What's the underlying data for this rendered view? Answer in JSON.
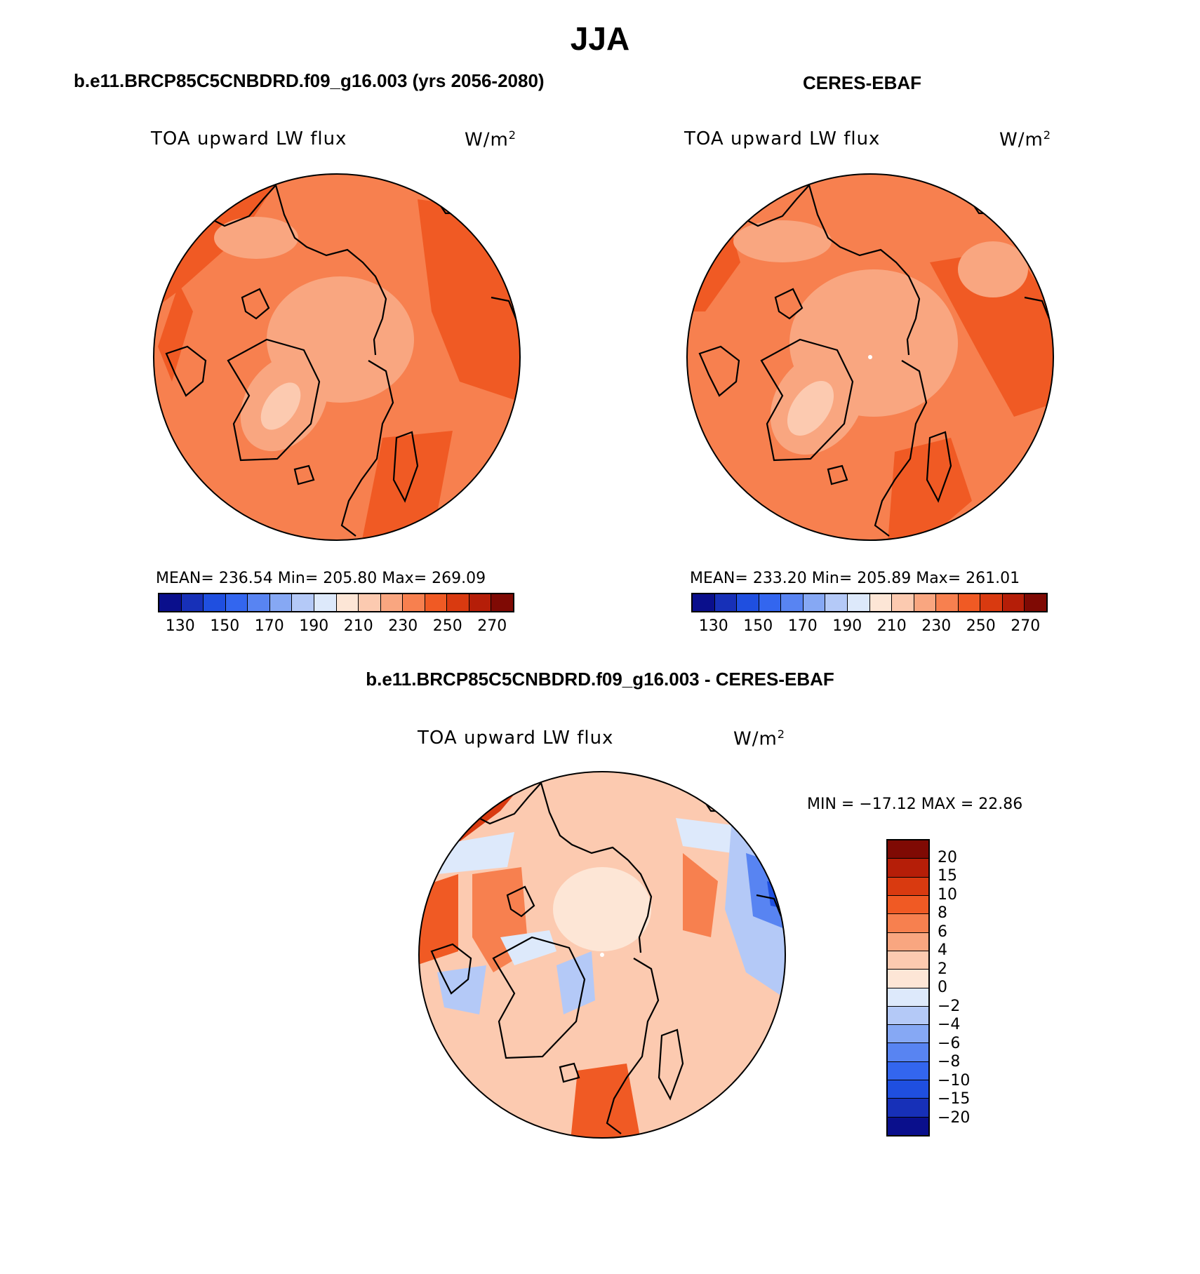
{
  "figure": {
    "title": "JJA"
  },
  "panels": [
    {
      "title": "b.e11.BRCP85C5CNBDRD.f09_g16.003 (yrs 2056-2080)",
      "variable": "TOA upward LW flux",
      "units": "W/m",
      "units_sup": "2",
      "stats": "MEAN= 236.54   Min= 205.80   Max= 269.09",
      "projection": "polar stereographic, north pole",
      "colors": [
        "#0a0f8c",
        "#1730b8",
        "#1f4fe0",
        "#3366ef",
        "#5884f2",
        "#86a8f4",
        "#b4c9f7",
        "#dde9fb",
        "#fde6d6",
        "#fccab0",
        "#f9a680",
        "#f7804f",
        "#f05a24",
        "#d93a10",
        "#b51e08",
        "#7f0a04"
      ],
      "ticks": [
        "130",
        "150",
        "170",
        "190",
        "210",
        "230",
        "250",
        "270"
      ]
    },
    {
      "title": "CERES-EBAF",
      "variable": "TOA upward LW flux",
      "units": "W/m",
      "units_sup": "2",
      "stats": "MEAN= 233.20   Min= 205.89   Max= 261.01",
      "projection": "polar stereographic, north pole",
      "colors": [
        "#0a0f8c",
        "#1730b8",
        "#1f4fe0",
        "#3366ef",
        "#5884f2",
        "#86a8f4",
        "#b4c9f7",
        "#dde9fb",
        "#fde6d6",
        "#fccab0",
        "#f9a680",
        "#f7804f",
        "#f05a24",
        "#d93a10",
        "#b51e08",
        "#7f0a04"
      ],
      "ticks": [
        "130",
        "150",
        "170",
        "190",
        "210",
        "230",
        "250",
        "270"
      ]
    },
    {
      "title": "b.e11.BRCP85C5CNBDRD.f09_g16.003 - CERES-EBAF",
      "variable": "TOA upward LW flux",
      "units": "W/m",
      "units_sup": "2",
      "stats": "MIN = −17.12  MAX =   22.86",
      "projection": "polar stereographic, north pole",
      "colors": [
        "#7f0a04",
        "#b51e08",
        "#d93a10",
        "#f05a24",
        "#f7804f",
        "#f9a680",
        "#fccab0",
        "#fde6d6",
        "#dde9fb",
        "#b4c9f7",
        "#86a8f4",
        "#5884f2",
        "#3366ef",
        "#1f4fe0",
        "#1730b8",
        "#0a0f8c"
      ],
      "ticks": [
        "20",
        "15",
        "10",
        "8",
        "6",
        "4",
        "2",
        "0",
        "−2",
        "−4",
        "−6",
        "−8",
        "−10",
        "−15",
        "−20"
      ]
    }
  ]
}
